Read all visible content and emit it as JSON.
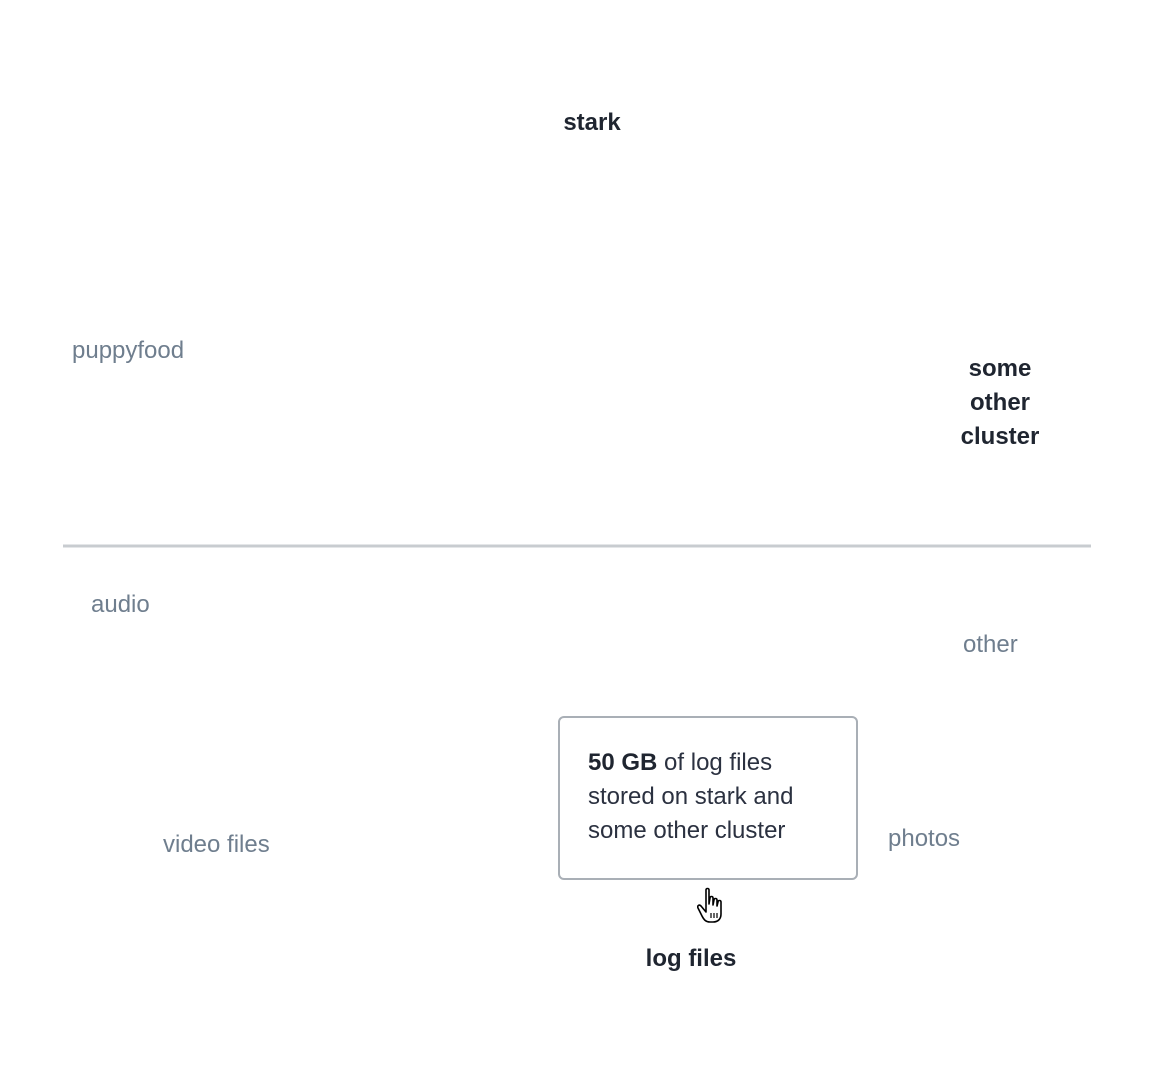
{
  "diagram": {
    "divider_color": "#c8ccd0",
    "nodes": [
      {
        "id": "stark",
        "label": "stark",
        "emphasized": true
      },
      {
        "id": "some-other-cluster",
        "label": "some other cluster",
        "emphasized": true
      },
      {
        "id": "puppyfood",
        "label": "puppyfood",
        "emphasized": false
      },
      {
        "id": "other",
        "label": "other",
        "emphasized": false
      },
      {
        "id": "photos",
        "label": "photos",
        "emphasized": false
      },
      {
        "id": "log-files",
        "label": "log files",
        "emphasized": true
      },
      {
        "id": "video-files",
        "label": "video files",
        "emphasized": false
      },
      {
        "id": "audio",
        "label": "audio",
        "emphasized": false
      }
    ],
    "flows": [
      {
        "source": "stark",
        "target": "log-files",
        "color": "#7ec4f3",
        "highlighted": true
      },
      {
        "source": "some-other-cluster",
        "target": "log-files",
        "color": "#7ec4f3",
        "highlighted": true
      },
      {
        "source": "stark",
        "target": "video-files",
        "color": "#cfeee4",
        "highlighted": false
      },
      {
        "source": "stark",
        "target": "photos",
        "color": "#fbefd8",
        "highlighted": false
      },
      {
        "source": "puppyfood",
        "target": "other",
        "color": "#ece3f3",
        "highlighted": false
      },
      {
        "source": "puppyfood",
        "target": "video-files",
        "color": "#d8efe7",
        "highlighted": false
      },
      {
        "source": "puppyfood",
        "target": "audio",
        "color": "#f6e3ef",
        "highlighted": false
      },
      {
        "source": "some-other-cluster",
        "target": "photos",
        "color": "#fbefd8",
        "highlighted": false
      },
      {
        "source": "some-other-cluster",
        "target": "other",
        "color": "#ece3f3",
        "highlighted": false
      }
    ]
  },
  "tooltip": {
    "amount": "50 GB",
    "text_line1": "of log files",
    "text_line2": "stored on stark and",
    "text_line3": "some other cluster"
  }
}
